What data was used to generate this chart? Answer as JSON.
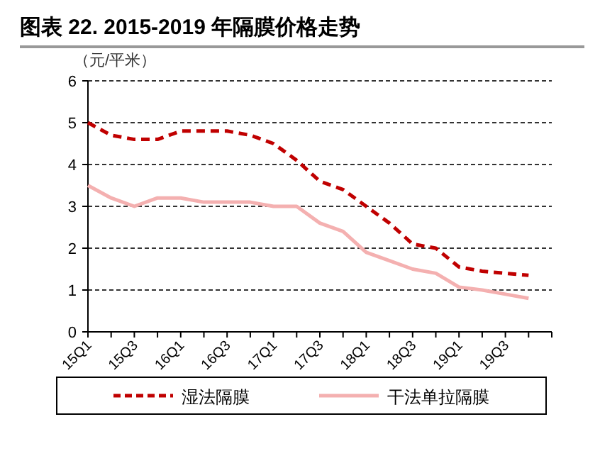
{
  "chart_data": {
    "type": "line",
    "title": "图表 22. 2015-2019 年隔膜价格走势",
    "ylabel": "（元/平米）",
    "categories": [
      "15Q1",
      null,
      "15Q3",
      null,
      "16Q1",
      null,
      "16Q3",
      null,
      "17Q1",
      null,
      "17Q3",
      null,
      "18Q1",
      null,
      "18Q3",
      null,
      "19Q1",
      null,
      "19Q3",
      null
    ],
    "series": [
      {
        "name": "湿法隔膜",
        "color": "#c00000",
        "line_style": "dashed",
        "values": [
          5.0,
          4.7,
          4.6,
          4.6,
          4.8,
          4.8,
          4.8,
          4.7,
          4.5,
          4.1,
          3.6,
          3.4,
          3.0,
          2.6,
          2.1,
          2.0,
          1.55,
          1.45,
          1.4,
          1.35
        ]
      },
      {
        "name": "干法单拉隔膜",
        "color": "#f4b0b0",
        "line_style": "solid",
        "values": [
          3.5,
          3.2,
          3.0,
          3.2,
          3.2,
          3.1,
          3.1,
          3.1,
          3.0,
          3.0,
          2.6,
          2.4,
          1.9,
          1.7,
          1.5,
          1.4,
          1.07,
          1.0,
          0.9,
          0.8
        ]
      }
    ],
    "ylim": [
      0,
      6
    ],
    "yticks": [
      0,
      1,
      2,
      3,
      4,
      5,
      6
    ],
    "grid": "y",
    "legend": "bottom",
    "marker": "none"
  }
}
